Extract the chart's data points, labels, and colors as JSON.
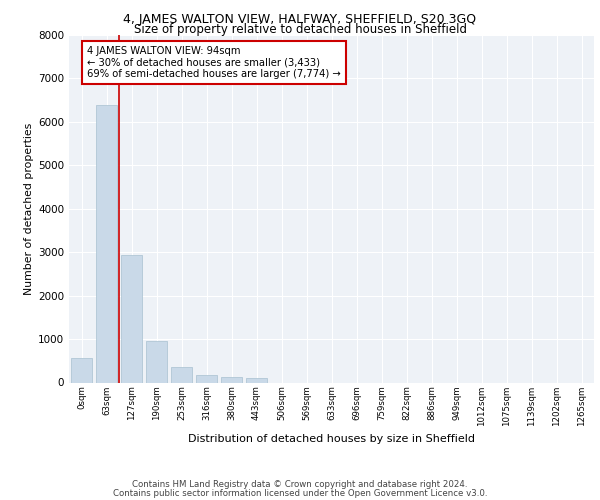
{
  "title_line1": "4, JAMES WALTON VIEW, HALFWAY, SHEFFIELD, S20 3GQ",
  "title_line2": "Size of property relative to detached houses in Sheffield",
  "xlabel": "Distribution of detached houses by size in Sheffield",
  "ylabel": "Number of detached properties",
  "bar_labels": [
    "0sqm",
    "63sqm",
    "127sqm",
    "190sqm",
    "253sqm",
    "316sqm",
    "380sqm",
    "443sqm",
    "506sqm",
    "569sqm",
    "633sqm",
    "696sqm",
    "759sqm",
    "822sqm",
    "886sqm",
    "949sqm",
    "1012sqm",
    "1075sqm",
    "1139sqm",
    "1202sqm",
    "1265sqm"
  ],
  "bar_values": [
    560,
    6380,
    2930,
    950,
    360,
    175,
    130,
    110,
    0,
    0,
    0,
    0,
    0,
    0,
    0,
    0,
    0,
    0,
    0,
    0,
    0
  ],
  "bar_color": "#c9d9e8",
  "bar_edgecolor": "#a8c0d0",
  "property_line_x": 1.5,
  "property_sqm": 94,
  "annotation_title": "4 JAMES WALTON VIEW: 94sqm",
  "annotation_line1": "← 30% of detached houses are smaller (3,433)",
  "annotation_line2": "69% of semi-detached houses are larger (7,774) →",
  "vline_color": "#cc0000",
  "annotation_box_facecolor": "#ffffff",
  "annotation_box_edgecolor": "#cc0000",
  "ylim": [
    0,
    8000
  ],
  "yticks": [
    0,
    1000,
    2000,
    3000,
    4000,
    5000,
    6000,
    7000,
    8000
  ],
  "footer_line1": "Contains HM Land Registry data © Crown copyright and database right 2024.",
  "footer_line2": "Contains public sector information licensed under the Open Government Licence v3.0.",
  "bg_color": "#eef2f7"
}
